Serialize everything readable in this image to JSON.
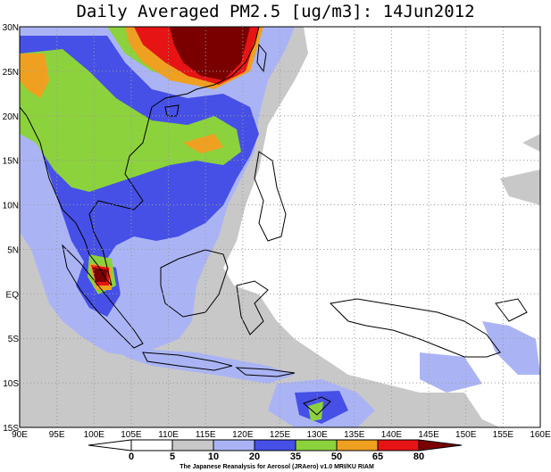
{
  "title": "Daily Averaged PM2.5 [ug/m3]: 14Jun2012",
  "map": {
    "lon_labels": [
      "90E",
      "95E",
      "100E",
      "105E",
      "110E",
      "115E",
      "120E",
      "125E",
      "130E",
      "135E",
      "140E",
      "145E",
      "150E",
      "155E",
      "160E"
    ],
    "lat_labels": [
      "30N",
      "25N",
      "20N",
      "15N",
      "10N",
      "5N",
      "EQ",
      "5S",
      "10S",
      "15S"
    ],
    "grid": "dotted"
  },
  "colorbar": {
    "labels": [
      "0",
      "5",
      "10",
      "20",
      "35",
      "50",
      "65",
      "80"
    ],
    "colors": [
      "#ffffff",
      "#ffffff",
      "#c8c8c8",
      "#aab4f5",
      "#4650e6",
      "#8cd23c",
      "#f0a020",
      "#e61414",
      "#7a0000"
    ]
  },
  "credit": "The Japanese Reanalysis for Aerosol (JRAero) v1.0  MRI/KU RIAM"
}
